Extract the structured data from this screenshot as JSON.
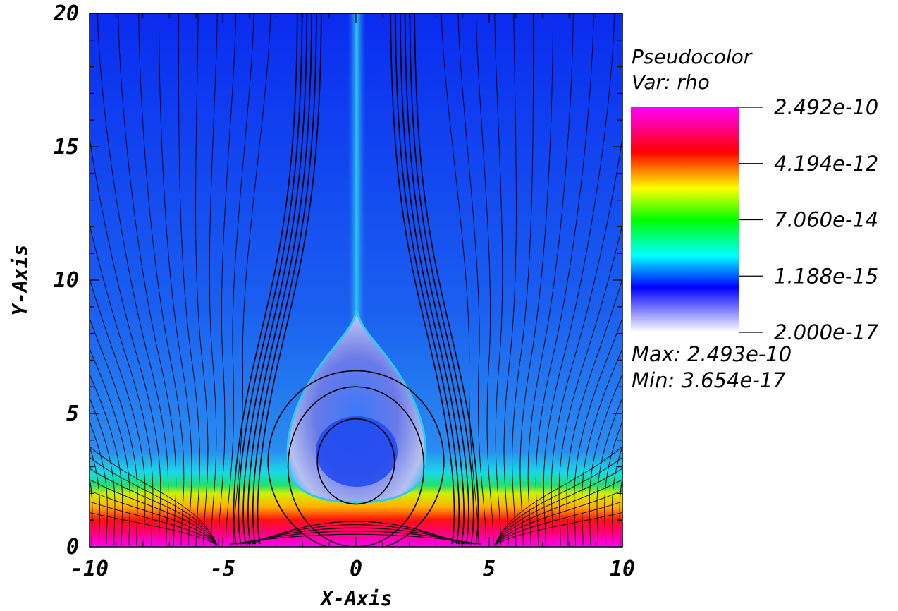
{
  "chart_data": {
    "type": "heatmap",
    "plot_type_label": "Pseudocolor",
    "variable_label": "Var: rho",
    "xlabel": "X-Axis",
    "ylabel": "Y-Axis",
    "xlim": [
      -10,
      10
    ],
    "ylim": [
      0,
      20
    ],
    "x_ticks": [
      "-10",
      "-5",
      "0",
      "5",
      "10"
    ],
    "y_ticks": [
      "0",
      "5",
      "10",
      "15",
      "20"
    ],
    "colorbar": {
      "scale": "log",
      "labels": [
        "2.492e-10",
        "4.194e-12",
        "7.060e-14",
        "1.188e-15",
        "2.000e-17"
      ],
      "colors": [
        "#ff00ff",
        "#ff0000",
        "#ffff00",
        "#00ff00",
        "#00ffff",
        "#0000ff",
        "#ffffff"
      ]
    },
    "max_label": "Max:  2.493e-10",
    "min_label": "Min:  3.654e-17",
    "field_lines": "black",
    "grid": false
  }
}
